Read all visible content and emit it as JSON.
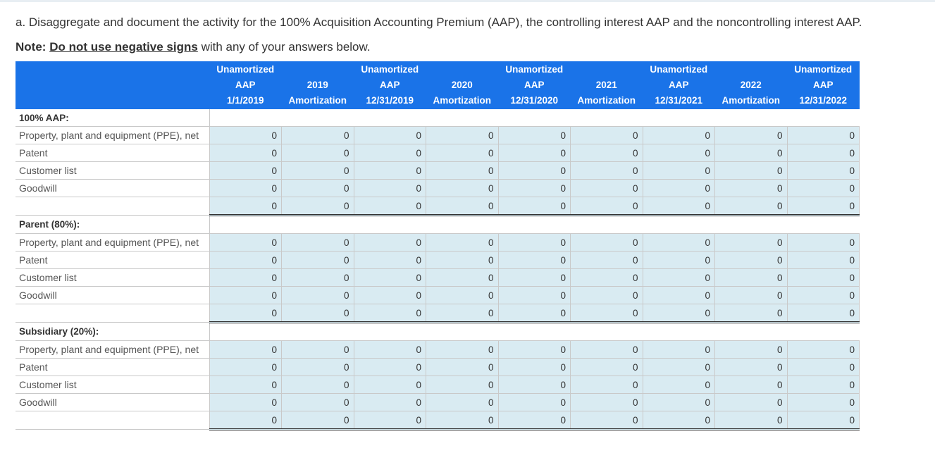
{
  "question": "a. Disaggregate and document the activity for the 100% Acquisition Accounting Premium (AAP), the controlling interest AAP and the noncontrolling interest AAP.",
  "note": {
    "label": "Note:",
    "emphasis": "Do not use negative signs",
    "rest": " with any of your answers below."
  },
  "table": {
    "columns": [
      [
        "Unamortized",
        "AAP",
        "1/1/2019"
      ],
      [
        "",
        "2019",
        "Amortization"
      ],
      [
        "Unamortized",
        "AAP",
        "12/31/2019"
      ],
      [
        "",
        "2020",
        "Amortization"
      ],
      [
        "Unamortized",
        "AAP",
        "12/31/2020"
      ],
      [
        "",
        "2021",
        "Amortization"
      ],
      [
        "Unamortized",
        "AAP",
        "12/31/2021"
      ],
      [
        "",
        "2022",
        "Amortization"
      ],
      [
        "Unamortized",
        "AAP",
        "12/31/2022"
      ]
    ],
    "sections": [
      {
        "title": "100% AAP:",
        "rows": [
          {
            "label": "Property, plant and equipment (PPE), net",
            "values": [
              "0",
              "0",
              "0",
              "0",
              "0",
              "0",
              "0",
              "0",
              "0"
            ]
          },
          {
            "label": "Patent",
            "values": [
              "0",
              "0",
              "0",
              "0",
              "0",
              "0",
              "0",
              "0",
              "0"
            ]
          },
          {
            "label": "Customer list",
            "values": [
              "0",
              "0",
              "0",
              "0",
              "0",
              "0",
              "0",
              "0",
              "0"
            ]
          },
          {
            "label": "Goodwill",
            "values": [
              "0",
              "0",
              "0",
              "0",
              "0",
              "0",
              "0",
              "0",
              "0"
            ]
          }
        ],
        "total": [
          "0",
          "0",
          "0",
          "0",
          "0",
          "0",
          "0",
          "0",
          "0"
        ]
      },
      {
        "title": "Parent (80%):",
        "rows": [
          {
            "label": "Property, plant and equipment (PPE), net",
            "values": [
              "0",
              "0",
              "0",
              "0",
              "0",
              "0",
              "0",
              "0",
              "0"
            ]
          },
          {
            "label": "Patent",
            "values": [
              "0",
              "0",
              "0",
              "0",
              "0",
              "0",
              "0",
              "0",
              "0"
            ]
          },
          {
            "label": "Customer list",
            "values": [
              "0",
              "0",
              "0",
              "0",
              "0",
              "0",
              "0",
              "0",
              "0"
            ]
          },
          {
            "label": "Goodwill",
            "values": [
              "0",
              "0",
              "0",
              "0",
              "0",
              "0",
              "0",
              "0",
              "0"
            ]
          }
        ],
        "total": [
          "0",
          "0",
          "0",
          "0",
          "0",
          "0",
          "0",
          "0",
          "0"
        ]
      },
      {
        "title": "Subsidiary (20%):",
        "rows": [
          {
            "label": "Property, plant and equipment (PPE), net",
            "values": [
              "0",
              "0",
              "0",
              "0",
              "0",
              "0",
              "0",
              "0",
              "0"
            ]
          },
          {
            "label": "Patent",
            "values": [
              "0",
              "0",
              "0",
              "0",
              "0",
              "0",
              "0",
              "0",
              "0"
            ]
          },
          {
            "label": "Customer list",
            "values": [
              "0",
              "0",
              "0",
              "0",
              "0",
              "0",
              "0",
              "0",
              "0"
            ]
          },
          {
            "label": "Goodwill",
            "values": [
              "0",
              "0",
              "0",
              "0",
              "0",
              "0",
              "0",
              "0",
              "0"
            ]
          }
        ],
        "total": [
          "0",
          "0",
          "0",
          "0",
          "0",
          "0",
          "0",
          "0",
          "0"
        ]
      }
    ]
  }
}
